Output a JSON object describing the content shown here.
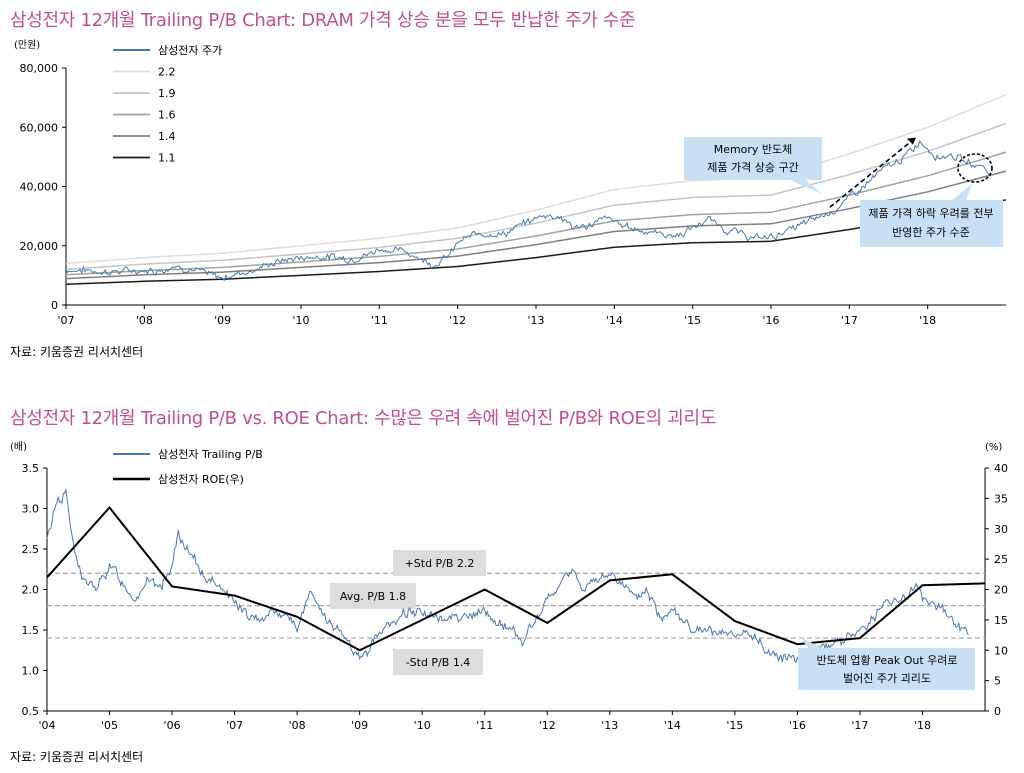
{
  "chart_data": [
    {
      "type": "line",
      "title": "삼성전자 12개월 Trailing P/B Chart: DRAM 가격 상승 분을 모두 반납한 주가 수준",
      "source": "자료: 키움증권 리서치센터",
      "ylabel": "(만원)",
      "ylim": [
        0,
        80000
      ],
      "yticks": [
        "0",
        "20,000",
        "40,000",
        "60,000",
        "80,000"
      ],
      "xlim": [
        2007,
        2019
      ],
      "xticks": [
        "'07",
        "'08",
        "'09",
        "'10",
        "'11",
        "'12",
        "'13",
        "'14",
        "'15",
        "'16",
        "'17",
        "'18"
      ],
      "price_series": {
        "name": "삼성전자 주가",
        "color": "#4a78ad",
        "points": [
          [
            2007.0,
            12000
          ],
          [
            2007.3,
            11600
          ],
          [
            2007.6,
            11200
          ],
          [
            2007.9,
            11600
          ],
          [
            2008.2,
            11800
          ],
          [
            2008.4,
            13400
          ],
          [
            2008.6,
            12200
          ],
          [
            2008.9,
            9600
          ],
          [
            2009.0,
            9200
          ],
          [
            2009.2,
            10800
          ],
          [
            2009.4,
            11800
          ],
          [
            2009.6,
            13800
          ],
          [
            2009.8,
            15200
          ],
          [
            2010.0,
            16000
          ],
          [
            2010.3,
            16400
          ],
          [
            2010.6,
            15600
          ],
          [
            2010.9,
            17400
          ],
          [
            2011.0,
            19200
          ],
          [
            2011.2,
            18400
          ],
          [
            2011.4,
            17600
          ],
          [
            2011.6,
            14800
          ],
          [
            2011.7,
            13800
          ],
          [
            2011.9,
            16800
          ],
          [
            2012.0,
            21000
          ],
          [
            2012.2,
            23500
          ],
          [
            2012.4,
            24400
          ],
          [
            2012.6,
            24000
          ],
          [
            2012.8,
            26800
          ],
          [
            2013.0,
            29200
          ],
          [
            2013.1,
            30500
          ],
          [
            2013.3,
            30000
          ],
          [
            2013.5,
            25800
          ],
          [
            2013.7,
            27200
          ],
          [
            2013.9,
            29200
          ],
          [
            2014.1,
            27000
          ],
          [
            2014.3,
            25600
          ],
          [
            2014.6,
            24000
          ],
          [
            2014.8,
            23400
          ],
          [
            2015.0,
            26000
          ],
          [
            2015.2,
            29000
          ],
          [
            2015.4,
            26000
          ],
          [
            2015.6,
            24000
          ],
          [
            2015.8,
            22500
          ],
          [
            2016.0,
            23000
          ],
          [
            2016.2,
            25000
          ],
          [
            2016.4,
            27000
          ],
          [
            2016.6,
            29500
          ],
          [
            2016.8,
            32000
          ],
          [
            2017.0,
            36000
          ],
          [
            2017.2,
            40500
          ],
          [
            2017.4,
            45000
          ],
          [
            2017.6,
            48000
          ],
          [
            2017.8,
            52000
          ],
          [
            2017.9,
            55500
          ],
          [
            2018.0,
            53000
          ],
          [
            2018.15,
            50000
          ],
          [
            2018.3,
            51000
          ],
          [
            2018.5,
            48000
          ],
          [
            2018.7,
            47000
          ],
          [
            2018.8,
            44000
          ]
        ]
      },
      "pb_bands": [
        {
          "name": "2.2",
          "color": "#dddddd",
          "values": [
            [
              2007.0,
              14000
            ],
            [
              2008.0,
              16000
            ],
            [
              2009.0,
              17500
            ],
            [
              2010.0,
              20000
            ],
            [
              2011.0,
              22500
            ],
            [
              2012.0,
              26000
            ],
            [
              2013.0,
              32000
            ],
            [
              2014.0,
              39000
            ],
            [
              2015.0,
              42000
            ],
            [
              2016.0,
              43000
            ],
            [
              2017.0,
              51000
            ],
            [
              2018.0,
              60000
            ],
            [
              2019.0,
              71000
            ]
          ]
        },
        {
          "name": "1.9",
          "color": "#c4c4c4",
          "values": [
            [
              2007.0,
              12000
            ],
            [
              2008.0,
              13800
            ],
            [
              2009.0,
              15100
            ],
            [
              2010.0,
              17200
            ],
            [
              2011.0,
              19400
            ],
            [
              2012.0,
              22500
            ],
            [
              2013.0,
              27600
            ],
            [
              2014.0,
              33700
            ],
            [
              2015.0,
              36300
            ],
            [
              2016.0,
              37100
            ],
            [
              2017.0,
              44000
            ],
            [
              2018.0,
              51800
            ],
            [
              2019.0,
              61300
            ]
          ]
        },
        {
          "name": "1.6",
          "color": "#a3a3a3",
          "values": [
            [
              2007.0,
              10200
            ],
            [
              2008.0,
              11600
            ],
            [
              2009.0,
              12700
            ],
            [
              2010.0,
              14500
            ],
            [
              2011.0,
              16400
            ],
            [
              2012.0,
              18900
            ],
            [
              2013.0,
              23300
            ],
            [
              2014.0,
              28400
            ],
            [
              2015.0,
              30500
            ],
            [
              2016.0,
              31300
            ],
            [
              2017.0,
              37100
            ],
            [
              2018.0,
              43600
            ],
            [
              2019.0,
              51600
            ]
          ]
        },
        {
          "name": "1.4",
          "color": "#7f7f7f",
          "values": [
            [
              2007.0,
              8900
            ],
            [
              2008.0,
              10200
            ],
            [
              2009.0,
              11100
            ],
            [
              2010.0,
              12700
            ],
            [
              2011.0,
              14300
            ],
            [
              2012.0,
              16500
            ],
            [
              2013.0,
              20400
            ],
            [
              2014.0,
              24800
            ],
            [
              2015.0,
              26700
            ],
            [
              2016.0,
              27400
            ],
            [
              2017.0,
              32500
            ],
            [
              2018.0,
              38200
            ],
            [
              2019.0,
              45200
            ]
          ]
        },
        {
          "name": "1.1",
          "color": "#1a1a1a",
          "values": [
            [
              2007.0,
              7000
            ],
            [
              2008.0,
              8000
            ],
            [
              2009.0,
              8700
            ],
            [
              2010.0,
              10000
            ],
            [
              2011.0,
              11300
            ],
            [
              2012.0,
              13000
            ],
            [
              2013.0,
              16000
            ],
            [
              2014.0,
              19500
            ],
            [
              2015.0,
              21000
            ],
            [
              2016.0,
              21500
            ],
            [
              2017.0,
              25500
            ],
            [
              2018.0,
              30000
            ],
            [
              2019.0,
              35500
            ]
          ]
        }
      ],
      "legend": [
        "삼성전자 주가",
        "2.2",
        "1.9",
        "1.6",
        "1.4",
        "1.1"
      ],
      "annotations": [
        {
          "lines": [
            "Memory 반도체",
            "제품 가격 상승 구간"
          ]
        },
        {
          "lines": [
            "제품 가격 하락 우려를 전부",
            "반영한 주가 수준"
          ]
        }
      ]
    },
    {
      "type": "line",
      "title": "삼성전자 12개월 Trailing P/B vs. ROE Chart: 수많은 우려 속에 벌어진 P/B와 ROE의 괴리도",
      "source": "자료: 키움증권 리서치센터",
      "ylabel_left": "(배)",
      "ylabel_right": "(%)",
      "ylim_left": [
        0.5,
        3.5
      ],
      "ylim_right": [
        0,
        40
      ],
      "yticks_left": [
        "0.5",
        "1.0",
        "1.5",
        "2.0",
        "2.5",
        "3.0",
        "3.5"
      ],
      "yticks_right": [
        "0",
        "5",
        "10",
        "15",
        "20",
        "25",
        "30",
        "35",
        "40"
      ],
      "xlim": [
        2004,
        2019
      ],
      "xticks": [
        "'04",
        "'05",
        "'06",
        "'07",
        "'08",
        "'09",
        "'10",
        "'11",
        "'12",
        "'13",
        "'14",
        "'15",
        "'16",
        "'17",
        "'18"
      ],
      "pb_series": {
        "name": "삼성전자 Trailing P/B",
        "color": "#4a78ad",
        "points": [
          [
            2004.0,
            2.6
          ],
          [
            2004.15,
            3.1
          ],
          [
            2004.3,
            3.2
          ],
          [
            2004.45,
            2.4
          ],
          [
            2004.6,
            2.1
          ],
          [
            2004.8,
            2.0
          ],
          [
            2005.0,
            2.3
          ],
          [
            2005.2,
            2.1
          ],
          [
            2005.4,
            1.9
          ],
          [
            2005.6,
            2.1
          ],
          [
            2005.8,
            2.0
          ],
          [
            2006.0,
            2.3
          ],
          [
            2006.1,
            2.7
          ],
          [
            2006.2,
            2.5
          ],
          [
            2006.4,
            2.3
          ],
          [
            2006.6,
            2.1
          ],
          [
            2006.8,
            2.05
          ],
          [
            2007.0,
            1.85
          ],
          [
            2007.3,
            1.6
          ],
          [
            2007.6,
            1.75
          ],
          [
            2007.9,
            1.65
          ],
          [
            2008.0,
            1.5
          ],
          [
            2008.2,
            1.95
          ],
          [
            2008.4,
            1.7
          ],
          [
            2008.6,
            1.5
          ],
          [
            2008.8,
            1.4
          ],
          [
            2009.0,
            1.1
          ],
          [
            2009.15,
            1.25
          ],
          [
            2009.3,
            1.5
          ],
          [
            2009.5,
            1.55
          ],
          [
            2009.7,
            1.7
          ],
          [
            2010.0,
            1.75
          ],
          [
            2010.3,
            1.6
          ],
          [
            2010.5,
            1.7
          ],
          [
            2010.8,
            1.65
          ],
          [
            2011.0,
            1.75
          ],
          [
            2011.2,
            1.55
          ],
          [
            2011.4,
            1.55
          ],
          [
            2011.6,
            1.35
          ],
          [
            2011.8,
            1.6
          ],
          [
            2012.0,
            1.85
          ],
          [
            2012.2,
            2.05
          ],
          [
            2012.4,
            2.25
          ],
          [
            2012.6,
            2.0
          ],
          [
            2012.8,
            2.1
          ],
          [
            2013.0,
            2.2
          ],
          [
            2013.2,
            2.1
          ],
          [
            2013.4,
            1.85
          ],
          [
            2013.6,
            2.0
          ],
          [
            2013.8,
            1.65
          ],
          [
            2014.0,
            1.8
          ],
          [
            2014.3,
            1.5
          ],
          [
            2014.6,
            1.45
          ],
          [
            2014.8,
            1.45
          ],
          [
            2015.0,
            1.4
          ],
          [
            2015.2,
            1.45
          ],
          [
            2015.4,
            1.35
          ],
          [
            2015.6,
            1.2
          ],
          [
            2015.8,
            1.15
          ],
          [
            2016.0,
            1.2
          ],
          [
            2016.3,
            1.3
          ],
          [
            2016.6,
            1.35
          ],
          [
            2016.8,
            1.4
          ],
          [
            2017.0,
            1.5
          ],
          [
            2017.2,
            1.65
          ],
          [
            2017.4,
            1.8
          ],
          [
            2017.6,
            1.9
          ],
          [
            2017.8,
            1.95
          ],
          [
            2017.9,
            2.05
          ],
          [
            2018.0,
            1.9
          ],
          [
            2018.2,
            1.8
          ],
          [
            2018.4,
            1.7
          ],
          [
            2018.6,
            1.55
          ],
          [
            2018.75,
            1.45
          ]
        ]
      },
      "roe_series": {
        "name": "삼성전자 ROE(우)",
        "color": "#000000",
        "axis": "right",
        "points": [
          [
            2004.0,
            22
          ],
          [
            2005.0,
            33.5
          ],
          [
            2006.0,
            20.5
          ],
          [
            2007.0,
            19
          ],
          [
            2008.0,
            15.5
          ],
          [
            2009.0,
            10
          ],
          [
            2010.0,
            15
          ],
          [
            2011.0,
            20
          ],
          [
            2012.0,
            14.5
          ],
          [
            2013.0,
            21.5
          ],
          [
            2014.0,
            22.5
          ],
          [
            2015.0,
            14.8
          ],
          [
            2016.0,
            11
          ],
          [
            2016.5,
            11.5
          ],
          [
            2017.0,
            12
          ],
          [
            2018.0,
            20.7
          ],
          [
            2019.0,
            21
          ]
        ]
      },
      "reference_lines": [
        {
          "label": "+Std P/B 2.2",
          "value": 2.2
        },
        {
          "label": "Avg. P/B 1.8",
          "value": 1.8
        },
        {
          "label": "-Std P/B 1.4",
          "value": 1.4
        }
      ],
      "legend": [
        "삼성전자 Trailing P/B",
        "삼성전자 ROE(우)"
      ],
      "annotations": [
        {
          "lines": [
            "반도체 업황 Peak Out 우려로",
            "벌어진 주가 괴리도"
          ]
        }
      ]
    }
  ]
}
